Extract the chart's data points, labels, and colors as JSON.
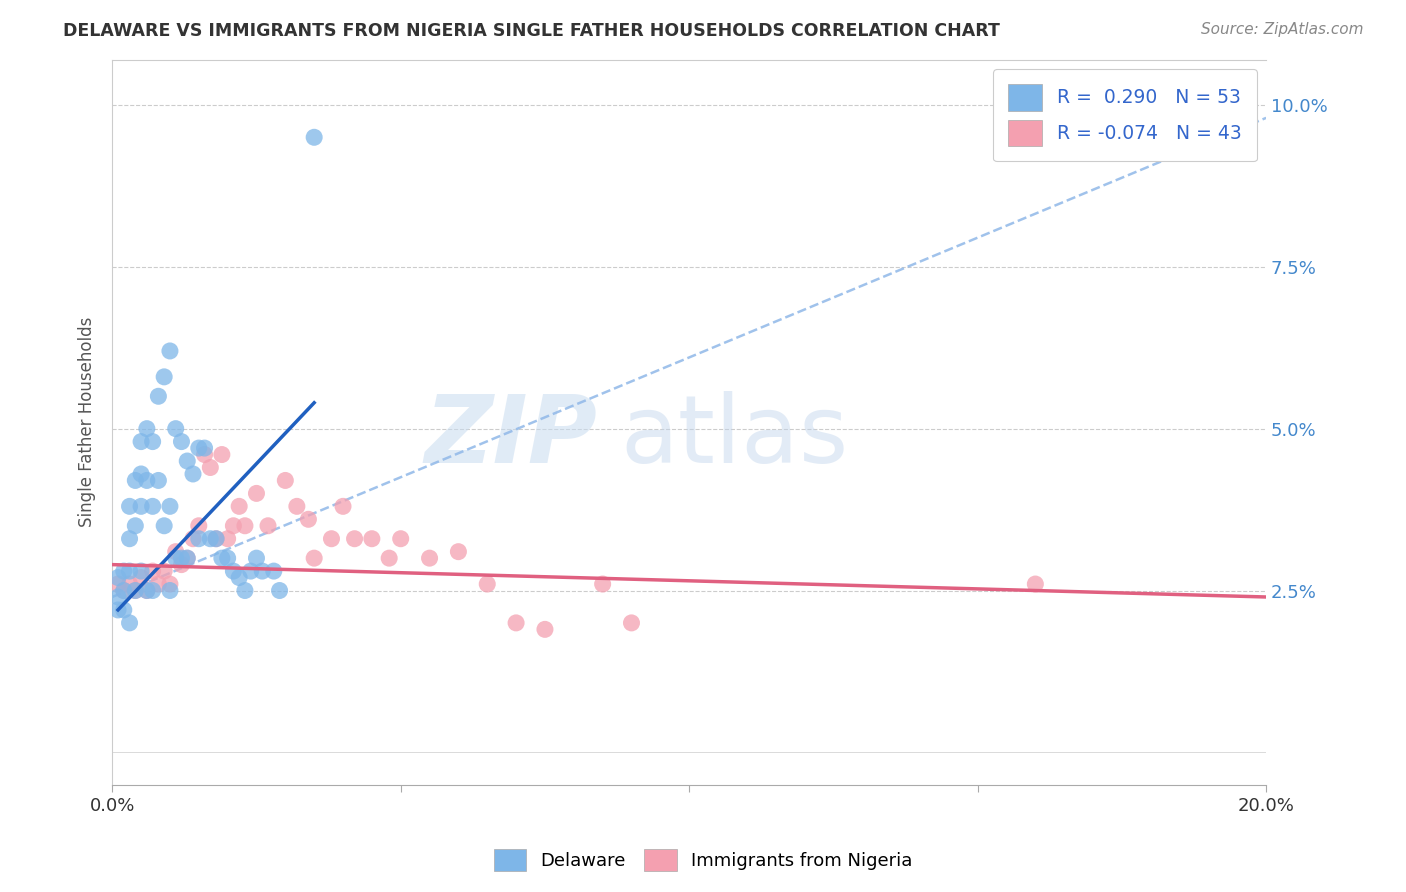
{
  "title": "DELAWARE VS IMMIGRANTS FROM NIGERIA SINGLE FATHER HOUSEHOLDS CORRELATION CHART",
  "source": "Source: ZipAtlas.com",
  "ylabel": "Single Father Households",
  "xlim": [
    0.0,
    0.2
  ],
  "ylim": [
    -0.005,
    0.107
  ],
  "yticks": [
    0.025,
    0.05,
    0.075,
    0.1
  ],
  "ytick_labels": [
    "2.5%",
    "5.0%",
    "7.5%",
    "10.0%"
  ],
  "xticks": [
    0.0,
    0.05,
    0.1,
    0.15,
    0.2
  ],
  "xtick_labels": [
    "0.0%",
    "",
    "",
    "",
    "20.0%"
  ],
  "delaware_R": 0.29,
  "delaware_N": 53,
  "nigeria_R": -0.074,
  "nigeria_N": 43,
  "delaware_color": "#7EB6E8",
  "nigeria_color": "#F4A0B0",
  "delaware_line_color": "#2060C0",
  "nigeria_line_color": "#E06080",
  "dashed_line_color": "#90B8E8",
  "background_color": "#FFFFFF",
  "delaware_x": [
    0.001,
    0.001,
    0.001,
    0.002,
    0.002,
    0.002,
    0.003,
    0.003,
    0.003,
    0.003,
    0.004,
    0.004,
    0.004,
    0.005,
    0.005,
    0.005,
    0.005,
    0.006,
    0.006,
    0.006,
    0.007,
    0.007,
    0.007,
    0.008,
    0.008,
    0.009,
    0.009,
    0.01,
    0.01,
    0.01,
    0.011,
    0.011,
    0.012,
    0.012,
    0.013,
    0.013,
    0.014,
    0.015,
    0.015,
    0.016,
    0.017,
    0.018,
    0.019,
    0.02,
    0.021,
    0.022,
    0.023,
    0.024,
    0.025,
    0.026,
    0.028,
    0.029,
    0.035
  ],
  "delaware_y": [
    0.027,
    0.024,
    0.022,
    0.028,
    0.025,
    0.022,
    0.038,
    0.033,
    0.028,
    0.02,
    0.042,
    0.035,
    0.025,
    0.048,
    0.043,
    0.038,
    0.028,
    0.05,
    0.042,
    0.025,
    0.048,
    0.038,
    0.025,
    0.055,
    0.042,
    0.058,
    0.035,
    0.062,
    0.038,
    0.025,
    0.05,
    0.03,
    0.048,
    0.03,
    0.045,
    0.03,
    0.043,
    0.047,
    0.033,
    0.047,
    0.033,
    0.033,
    0.03,
    0.03,
    0.028,
    0.027,
    0.025,
    0.028,
    0.03,
    0.028,
    0.028,
    0.025,
    0.095
  ],
  "nigeria_x": [
    0.001,
    0.002,
    0.003,
    0.004,
    0.005,
    0.006,
    0.007,
    0.008,
    0.009,
    0.01,
    0.011,
    0.012,
    0.013,
    0.014,
    0.015,
    0.016,
    0.017,
    0.018,
    0.019,
    0.02,
    0.021,
    0.022,
    0.023,
    0.025,
    0.027,
    0.03,
    0.032,
    0.034,
    0.035,
    0.038,
    0.04,
    0.042,
    0.045,
    0.048,
    0.05,
    0.055,
    0.06,
    0.065,
    0.07,
    0.075,
    0.085,
    0.09,
    0.16
  ],
  "nigeria_y": [
    0.026,
    0.025,
    0.026,
    0.025,
    0.027,
    0.025,
    0.028,
    0.026,
    0.028,
    0.026,
    0.031,
    0.029,
    0.03,
    0.033,
    0.035,
    0.046,
    0.044,
    0.033,
    0.046,
    0.033,
    0.035,
    0.038,
    0.035,
    0.04,
    0.035,
    0.042,
    0.038,
    0.036,
    0.03,
    0.033,
    0.038,
    0.033,
    0.033,
    0.03,
    0.033,
    0.03,
    0.031,
    0.026,
    0.02,
    0.019,
    0.026,
    0.02,
    0.026
  ],
  "delaware_trendline_x": [
    0.001,
    0.035
  ],
  "delaware_trendline_y": [
    0.022,
    0.054
  ],
  "nigeria_trendline_x": [
    0.0,
    0.2
  ],
  "nigeria_trendline_y": [
    0.029,
    0.024
  ],
  "dashed_trendline_x": [
    0.0,
    0.2
  ],
  "dashed_trendline_y": [
    0.024,
    0.098
  ]
}
